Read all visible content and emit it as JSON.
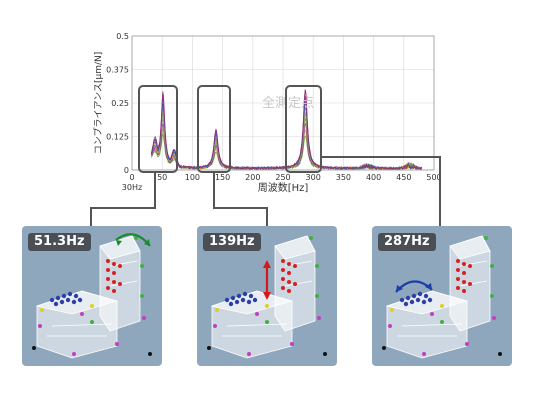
{
  "chart_data": {
    "type": "line",
    "xlabel": "周波数[Hz]",
    "ylabel": "コンプライアンス[μm/N]",
    "annotation": "全測定点",
    "xlim": [
      0,
      500
    ],
    "ylim": [
      0,
      0.5
    ],
    "x_ticks": [
      "0",
      "50",
      "100",
      "150",
      "200",
      "250",
      "300",
      "350",
      "400",
      "450",
      "500"
    ],
    "x_tick_values": [
      0,
      50,
      100,
      150,
      200,
      250,
      300,
      350,
      400,
      450,
      500
    ],
    "x_start_label": "30Hz",
    "y_ticks": [
      "0",
      "0.125",
      "0.25",
      "0.375",
      "0.5"
    ],
    "y_tick_values": [
      0,
      0.125,
      0.25,
      0.375,
      0.5
    ],
    "grid": true,
    "series_count": 12,
    "peaks": [
      {
        "freq": 51.3,
        "label": "51.3Hz",
        "amplitude": 0.24
      },
      {
        "freq": 139,
        "label": "139Hz",
        "amplitude": 0.13
      },
      {
        "freq": 287,
        "label": "287Hz",
        "amplitude": 0.26
      }
    ],
    "series_colors": [
      "#1f3fa8",
      "#2b8a3e",
      "#7b2a8c",
      "#c8c020",
      "#20a0a8",
      "#d04080",
      "#3050d0",
      "#60a030",
      "#9030a0",
      "#e0b020",
      "#2070c0",
      "#a02060"
    ]
  }
}
